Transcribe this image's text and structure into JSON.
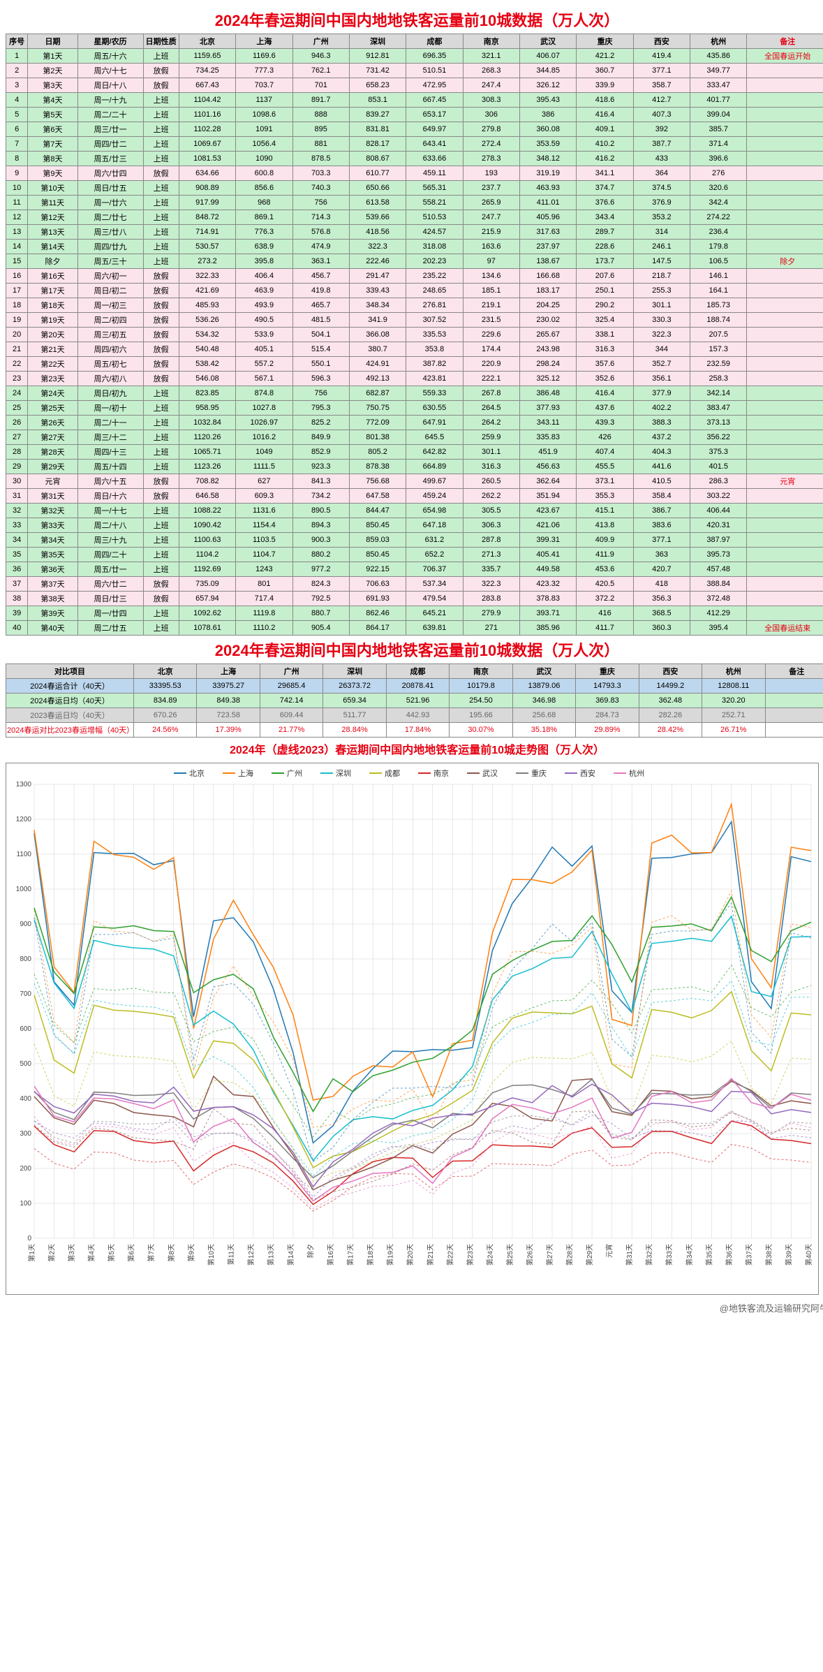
{
  "title1": "2024年春运期间中国内地地铁客运量前10城数据（万人次）",
  "title2": "2024年春运期间中国内地地铁客运量前10城数据（万人次）",
  "chartTitle": "2024年（虚线2023）春运期间中国内地地铁客运量前10城走势图（万人次）",
  "footer": "@地铁客流及运输研究阿牛",
  "headers": [
    "序号",
    "日期",
    "星期/农历",
    "日期性质",
    "北京",
    "上海",
    "广州",
    "深圳",
    "成都",
    "南京",
    "武汉",
    "重庆",
    "西安",
    "杭州",
    "备注"
  ],
  "cities": [
    "北京",
    "上海",
    "广州",
    "深圳",
    "成都",
    "南京",
    "武汉",
    "重庆",
    "西安",
    "杭州"
  ],
  "cityColors": [
    "#1f77b4",
    "#ff7f0e",
    "#2ca02c",
    "#17becf",
    "#bcbd22",
    "#d62728",
    "#8c564b",
    "#7f7f7f",
    "#9467bd",
    "#e377c2"
  ],
  "natureWork": "上班",
  "natureOff": "放假",
  "rows": [
    {
      "n": 1,
      "day": "第1天",
      "wk": "周五/十六",
      "nat": "上班",
      "v": [
        1159.65,
        1169.6,
        946.3,
        912.81,
        696.35,
        321.1,
        406.07,
        421.2,
        419.4,
        435.86
      ],
      "rem": "全国春运开始"
    },
    {
      "n": 2,
      "day": "第2天",
      "wk": "周六/十七",
      "nat": "放假",
      "v": [
        734.25,
        777.3,
        762.1,
        731.42,
        510.51,
        268.3,
        344.85,
        360.7,
        377.1,
        349.77
      ],
      "rem": ""
    },
    {
      "n": 3,
      "day": "第3天",
      "wk": "周日/十八",
      "nat": "放假",
      "v": [
        667.43,
        703.7,
        701,
        658.23,
        472.95,
        247.4,
        326.12,
        339.9,
        358.7,
        333.47
      ],
      "rem": ""
    },
    {
      "n": 4,
      "day": "第4天",
      "wk": "周一/十九",
      "nat": "上班",
      "v": [
        1104.42,
        1137,
        891.7,
        853.1,
        667.45,
        308.3,
        395.43,
        418.6,
        412.7,
        401.77
      ],
      "rem": ""
    },
    {
      "n": 5,
      "day": "第5天",
      "wk": "周二/二十",
      "nat": "上班",
      "v": [
        1101.16,
        1098.6,
        888.0,
        839.27,
        653.17,
        306,
        386,
        416.4,
        407.3,
        399.04
      ],
      "rem": ""
    },
    {
      "n": 6,
      "day": "第6天",
      "wk": "周三/廿一",
      "nat": "上班",
      "v": [
        1102.28,
        1091,
        895,
        831.81,
        649.97,
        279.8,
        360.08,
        409.1,
        392,
        385.7
      ],
      "rem": ""
    },
    {
      "n": 7,
      "day": "第7天",
      "wk": "周四/廿二",
      "nat": "上班",
      "v": [
        1069.67,
        1056.4,
        881,
        828.17,
        643.41,
        272.4,
        353.59,
        410.2,
        387.7,
        371.4
      ],
      "rem": ""
    },
    {
      "n": 8,
      "day": "第8天",
      "wk": "周五/廿三",
      "nat": "上班",
      "v": [
        1081.53,
        1090,
        878.5,
        808.67,
        633.66,
        278.3,
        348.12,
        416.2,
        433,
        396.6
      ],
      "rem": ""
    },
    {
      "n": 9,
      "day": "第9天",
      "wk": "周六/廿四",
      "nat": "放假",
      "v": [
        634.66,
        600.8,
        703.3,
        610.77,
        459.11,
        193,
        319.19,
        341.1,
        364,
        276
      ],
      "rem": ""
    },
    {
      "n": 10,
      "day": "第10天",
      "wk": "周日/廿五",
      "nat": "上班",
      "v": [
        908.89,
        856.6,
        740.3,
        650.66,
        565.31,
        237.7,
        463.93,
        374.7,
        374.5,
        320.6
      ],
      "rem": ""
    },
    {
      "n": 11,
      "day": "第11天",
      "wk": "周一/廿六",
      "nat": "上班",
      "v": [
        917.99,
        968,
        756,
        613.58,
        558.21,
        265.9,
        411.01,
        376.6,
        376.9,
        342.4
      ],
      "rem": ""
    },
    {
      "n": 12,
      "day": "第12天",
      "wk": "周二/廿七",
      "nat": "上班",
      "v": [
        848.72,
        869.1,
        714.3,
        539.66,
        510.53,
        247.7,
        405.96,
        343.4,
        353.2,
        274.22
      ],
      "rem": ""
    },
    {
      "n": 13,
      "day": "第13天",
      "wk": "周三/廿八",
      "nat": "上班",
      "v": [
        714.91,
        776.3,
        576.8,
        418.56,
        424.57,
        215.9,
        317.63,
        289.7,
        314,
        236.4
      ],
      "rem": ""
    },
    {
      "n": 14,
      "day": "第14天",
      "wk": "周四/廿九",
      "nat": "上班",
      "v": [
        530.57,
        638.9,
        474.9,
        322.3,
        318.08,
        163.6,
        237.97,
        228.6,
        246.1,
        179.8
      ],
      "rem": ""
    },
    {
      "n": 15,
      "day": "除夕",
      "wk": "周五/三十",
      "nat": "上班",
      "v": [
        273.2,
        395.8,
        363.1,
        222.46,
        202.23,
        97,
        138.67,
        173.7,
        147.5,
        106.5
      ],
      "rem": "除夕"
    },
    {
      "n": 16,
      "day": "第16天",
      "wk": "周六/初一",
      "nat": "放假",
      "v": [
        322.33,
        406.4,
        456.7,
        291.47,
        235.22,
        134.6,
        166.68,
        207.6,
        218.7,
        146.1
      ],
      "rem": ""
    },
    {
      "n": 17,
      "day": "第17天",
      "wk": "周日/初二",
      "nat": "放假",
      "v": [
        421.69,
        463.9,
        419.8,
        339.43,
        248.65,
        185.1,
        183.17,
        250.1,
        255.3,
        164.1
      ],
      "rem": ""
    },
    {
      "n": 18,
      "day": "第18天",
      "wk": "周一/初三",
      "nat": "放假",
      "v": [
        485.93,
        493.9,
        465.7,
        348.34,
        276.81,
        219.1,
        204.25,
        290.2,
        301.1,
        185.73
      ],
      "rem": ""
    },
    {
      "n": 19,
      "day": "第19天",
      "wk": "周二/初四",
      "nat": "放假",
      "v": [
        536.26,
        490.5,
        481.5,
        341.9,
        307.52,
        231.5,
        230.02,
        325.4,
        330.3,
        188.74
      ],
      "rem": ""
    },
    {
      "n": 20,
      "day": "第20天",
      "wk": "周三/初五",
      "nat": "放假",
      "v": [
        534.32,
        533.9,
        504.1,
        366.08,
        335.53,
        229.6,
        265.67,
        338.1,
        322.3,
        207.5
      ],
      "rem": ""
    },
    {
      "n": 21,
      "day": "第21天",
      "wk": "周四/初六",
      "nat": "放假",
      "v": [
        540.48,
        405.1,
        515.4,
        380.7,
        353.8,
        174.4,
        243.98,
        316.3,
        344,
        157.3
      ],
      "rem": ""
    },
    {
      "n": 22,
      "day": "第22天",
      "wk": "周五/初七",
      "nat": "放假",
      "v": [
        538.42,
        557.2,
        550.1,
        424.91,
        387.82,
        220.9,
        298.24,
        357.6,
        352.7,
        232.59
      ],
      "rem": ""
    },
    {
      "n": 23,
      "day": "第23天",
      "wk": "周六/初八",
      "nat": "放假",
      "v": [
        546.08,
        567.1,
        596.3,
        492.13,
        423.81,
        222.1,
        325.12,
        352.6,
        356.1,
        258.3
      ],
      "rem": ""
    },
    {
      "n": 24,
      "day": "第24天",
      "wk": "周日/初九",
      "nat": "上班",
      "v": [
        823.85,
        874.8,
        756,
        682.87,
        559.33,
        267.8,
        386.48,
        416.4,
        377.9,
        342.14
      ],
      "rem": ""
    },
    {
      "n": 25,
      "day": "第25天",
      "wk": "周一/初十",
      "nat": "上班",
      "v": [
        958.95,
        1027.8,
        795.3,
        750.75,
        630.55,
        264.5,
        377.93,
        437.6,
        402.2,
        383.47
      ],
      "rem": ""
    },
    {
      "n": 26,
      "day": "第26天",
      "wk": "周二/十一",
      "nat": "上班",
      "v": [
        1032.84,
        1026.97,
        825.2,
        772.09,
        647.91,
        264.2,
        343.11,
        439.3,
        388.3,
        373.13
      ],
      "rem": ""
    },
    {
      "n": 27,
      "day": "第27天",
      "wk": "周三/十二",
      "nat": "上班",
      "v": [
        1120.26,
        1016.2,
        849.9,
        801.38,
        645.5,
        259.9,
        335.83,
        426,
        437.2,
        356.22
      ],
      "rem": ""
    },
    {
      "n": 28,
      "day": "第28天",
      "wk": "周四/十三",
      "nat": "上班",
      "v": [
        1065.71,
        1049,
        852.9,
        805.2,
        642.82,
        301.1,
        451.9,
        407.4,
        404.3,
        375.3
      ],
      "rem": ""
    },
    {
      "n": 29,
      "day": "第29天",
      "wk": "周五/十四",
      "nat": "上班",
      "v": [
        1123.26,
        1111.5,
        923.3,
        878.38,
        664.89,
        316.3,
        456.63,
        455.5,
        441.6,
        401.5
      ],
      "rem": ""
    },
    {
      "n": 30,
      "day": "元宵",
      "wk": "周六/十五",
      "nat": "放假",
      "v": [
        708.82,
        627,
        841.3,
        756.68,
        499.67,
        260.5,
        362.64,
        373.1,
        410.5,
        286.3
      ],
      "rem": "元宵"
    },
    {
      "n": 31,
      "day": "第31天",
      "wk": "周日/十六",
      "nat": "放假",
      "v": [
        646.58,
        609.3,
        734.2,
        647.58,
        459.24,
        262.2,
        351.94,
        355.3,
        358.4,
        303.22
      ],
      "rem": ""
    },
    {
      "n": 32,
      "day": "第32天",
      "wk": "周一/十七",
      "nat": "上班",
      "v": [
        1088.22,
        1131.6,
        890.5,
        844.47,
        654.98,
        305.5,
        423.67,
        415.1,
        386.7,
        406.44
      ],
      "rem": ""
    },
    {
      "n": 33,
      "day": "第33天",
      "wk": "周二/十八",
      "nat": "上班",
      "v": [
        1090.42,
        1154.4,
        894.3,
        850.45,
        647.18,
        306.3,
        421.06,
        413.8,
        383.6,
        420.31
      ],
      "rem": ""
    },
    {
      "n": 34,
      "day": "第34天",
      "wk": "周三/十九",
      "nat": "上班",
      "v": [
        1100.63,
        1103.5,
        900.3,
        859.03,
        631.2,
        287.8,
        399.31,
        409.9,
        377.1,
        387.97
      ],
      "rem": ""
    },
    {
      "n": 35,
      "day": "第35天",
      "wk": "周四/二十",
      "nat": "上班",
      "v": [
        1104.2,
        1104.7,
        880.2,
        850.45,
        652.2,
        271.3,
        405.41,
        411.9,
        363,
        395.73
      ],
      "rem": ""
    },
    {
      "n": 36,
      "day": "第36天",
      "wk": "周五/廿一",
      "nat": "上班",
      "v": [
        1192.69,
        1243,
        977.2,
        922.15,
        706.37,
        335.7,
        449.58,
        453.6,
        420.7,
        457.48
      ],
      "rem": ""
    },
    {
      "n": 37,
      "day": "第37天",
      "wk": "周六/廿二",
      "nat": "放假",
      "v": [
        735.09,
        801,
        824.3,
        706.63,
        537.34,
        322.3,
        423.32,
        420.5,
        418,
        388.84
      ],
      "rem": ""
    },
    {
      "n": 38,
      "day": "第38天",
      "wk": "周日/廿三",
      "nat": "放假",
      "v": [
        657.94,
        717.4,
        792.5,
        691.93,
        479.54,
        283.8,
        378.83,
        372.2,
        356.3,
        372.48
      ],
      "rem": ""
    },
    {
      "n": 39,
      "day": "第39天",
      "wk": "周一/廿四",
      "nat": "上班",
      "v": [
        1092.62,
        1119.8,
        880.7,
        862.46,
        645.21,
        279.9,
        393.71,
        416,
        368.5,
        412.29
      ],
      "rem": ""
    },
    {
      "n": 40,
      "day": "第40天",
      "wk": "周二/廿五",
      "nat": "上班",
      "v": [
        1078.61,
        1110.2,
        905.4,
        864.17,
        639.81,
        271,
        385.96,
        411.7,
        360.3,
        395.4
      ],
      "rem": "全国春运结束"
    }
  ],
  "summaryHeaders": [
    "对比项目",
    "北京",
    "上海",
    "广州",
    "深圳",
    "成都",
    "南京",
    "武汉",
    "重庆",
    "西安",
    "杭州",
    "备注"
  ],
  "summary": [
    {
      "label": "2024春运合计（40天）",
      "cls": "row-total",
      "v": [
        "33395.53",
        "33975.27",
        "29685.4",
        "26373.72",
        "20878.41",
        "10179.8",
        "13879.06",
        "14793.3",
        "14499.2",
        "12808.11",
        ""
      ]
    },
    {
      "label": "2024春运日均（40天）",
      "cls": "row-avg",
      "v": [
        "834.89",
        "849.38",
        "742.14",
        "659.34",
        "521.96",
        "254.50",
        "346.98",
        "369.83",
        "362.48",
        "320.20",
        ""
      ]
    },
    {
      "label": "2023春运日均（40天）",
      "cls": "row-grey",
      "v": [
        "670.26",
        "723.58",
        "609.44",
        "511.77",
        "442.93",
        "195.66",
        "256.68",
        "284.73",
        "282.26",
        "252.71",
        ""
      ]
    },
    {
      "label": "2024春运对比2023春运增幅（40天）",
      "cls": "row-pct",
      "v": [
        "24.56%",
        "17.39%",
        "21.77%",
        "28.84%",
        "17.84%",
        "30.07%",
        "35.18%",
        "29.89%",
        "28.42%",
        "26.71%",
        ""
      ]
    }
  ],
  "chart": {
    "ylim": [
      0,
      1300
    ],
    "ystep": 100,
    "gridColor": "#d0d0d0",
    "bg": "#ffffff",
    "lineWidth": 1.5,
    "dashWidth": 1,
    "fontSize": 10,
    "legendFontSize": 11,
    "data2023": [
      [
        920,
        580,
        530,
        870,
        870,
        875,
        850,
        860,
        510,
        720,
        730,
        670,
        560,
        420,
        220,
        260,
        340,
        390,
        430,
        430,
        435,
        430,
        440,
        660,
        770,
        830,
        900,
        850,
        905,
        570,
        520,
        870,
        880,
        880,
        885,
        960,
        590,
        530,
        875,
        860
      ],
      [
        940,
        620,
        560,
        910,
        880,
        875,
        850,
        870,
        480,
        690,
        780,
        695,
        620,
        512,
        318,
        326,
        370,
        396,
        392,
        427,
        325,
        445,
        454,
        700,
        820,
        822,
        815,
        840,
        890,
        500,
        488,
        905,
        924,
        883,
        884,
        995,
        640,
        575,
        900,
        890
      ],
      [
        757,
        610,
        560,
        715,
        710,
        716,
        705,
        703,
        563,
        592,
        605,
        571,
        462,
        380,
        290,
        365,
        336,
        373,
        385,
        403,
        412,
        440,
        477,
        605,
        636,
        660,
        680,
        682,
        739,
        673,
        588,
        712,
        715,
        720,
        704,
        782,
        660,
        634,
        705,
        724
      ],
      [
        730,
        585,
        527,
        682,
        671,
        665,
        662,
        647,
        489,
        520,
        491,
        432,
        335,
        258,
        178,
        233,
        271,
        279,
        273,
        293,
        305,
        340,
        394,
        546,
        600,
        618,
        641,
        644,
        703,
        605,
        518,
        675,
        680,
        687,
        680,
        738,
        565,
        553,
        690,
        691
      ],
      [
        557,
        408,
        378,
        534,
        523,
        520,
        515,
        507,
        367,
        452,
        446,
        408,
        340,
        254,
        162,
        188,
        199,
        221,
        246,
        268,
        283,
        310,
        339,
        447,
        504,
        518,
        516,
        514,
        532,
        400,
        367,
        524,
        518,
        505,
        522,
        565,
        430,
        384,
        516,
        512
      ],
      [
        257,
        215,
        198,
        247,
        245,
        224,
        218,
        223,
        154,
        190,
        213,
        198,
        173,
        131,
        78,
        108,
        148,
        175,
        185,
        184,
        140,
        177,
        178,
        214,
        212,
        211,
        208,
        241,
        253,
        208,
        210,
        244,
        245,
        230,
        217,
        269,
        258,
        227,
        224,
        217
      ],
      [
        325,
        276,
        261,
        316,
        309,
        288,
        283,
        278,
        255,
        371,
        329,
        325,
        254,
        190,
        111,
        133,
        147,
        163,
        184,
        213,
        195,
        239,
        260,
        309,
        302,
        275,
        269,
        362,
        365,
        290,
        282,
        339,
        337,
        319,
        324,
        360,
        339,
        303,
        315,
        309
      ],
      [
        337,
        289,
        272,
        335,
        333,
        327,
        328,
        333,
        273,
        300,
        301,
        275,
        232,
        183,
        139,
        166,
        200,
        232,
        260,
        270,
        253,
        286,
        282,
        333,
        350,
        351,
        341,
        326,
        364,
        298,
        284,
        332,
        331,
        328,
        330,
        363,
        336,
        298,
        333,
        329
      ],
      [
        335,
        302,
        287,
        330,
        326,
        314,
        310,
        346,
        291,
        300,
        302,
        283,
        251,
        197,
        118,
        175,
        204,
        241,
        264,
        258,
        275,
        282,
        285,
        302,
        322,
        311,
        350,
        323,
        353,
        328,
        287,
        309,
        307,
        302,
        290,
        337,
        334,
        285,
        295,
        288
      ],
      [
        349,
        280,
        267,
        321,
        319,
        309,
        297,
        317,
        221,
        256,
        274,
        219,
        189,
        144,
        85,
        117,
        131,
        149,
        151,
        166,
        126,
        186,
        207,
        274,
        307,
        299,
        285,
        300,
        321,
        229,
        243,
        325,
        336,
        310,
        317,
        366,
        311,
        298,
        330,
        316
      ]
    ]
  }
}
